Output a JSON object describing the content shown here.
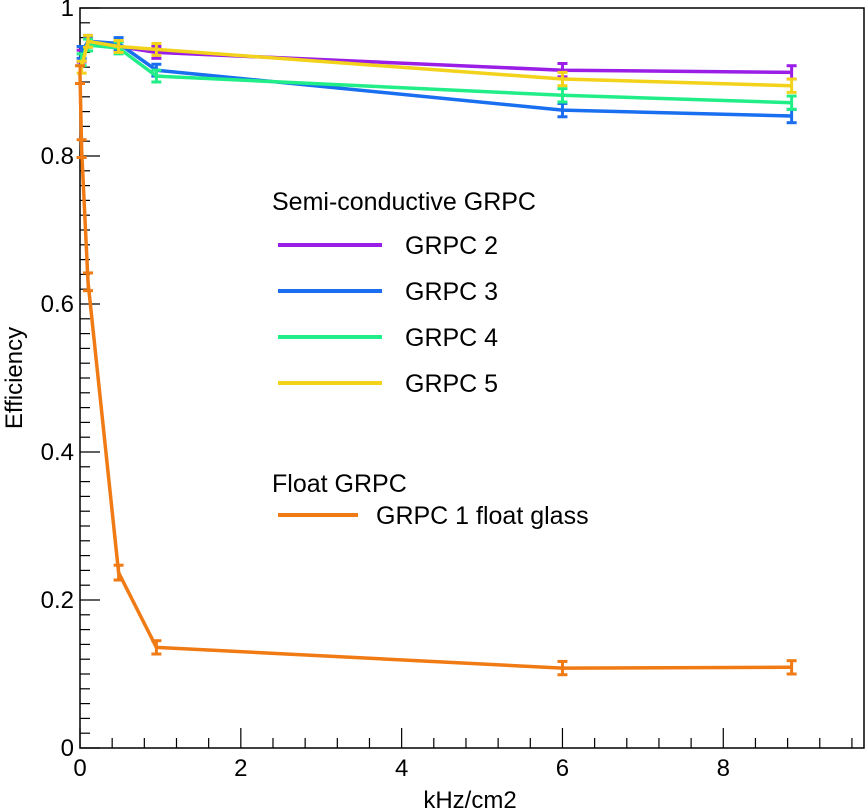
{
  "chart_data": {
    "type": "line",
    "xlabel": "kHz/cm2",
    "ylabel": "Efficiency",
    "xlim": [
      0,
      9.75
    ],
    "ylim": [
      0,
      1
    ],
    "xticks": [
      0,
      2,
      4,
      6,
      8
    ],
    "xtick_labels": [
      "0",
      "2",
      "4",
      "6",
      "8"
    ],
    "yticks": [
      0,
      0.2,
      0.4,
      0.6,
      0.8,
      1
    ],
    "ytick_labels": [
      "0",
      "0.2",
      "0.4",
      "0.6",
      "0.8",
      "1"
    ],
    "grid": false,
    "legend_groups": [
      {
        "title": "Semi-conductive GRPC",
        "placement": "center-right"
      },
      {
        "title": "Float GRPC",
        "placement": "center-right"
      }
    ],
    "series": [
      {
        "name": "GRPC 2",
        "group": 0,
        "color": "#9A1EE6",
        "x": [
          0.02,
          0.1,
          0.48,
          0.95,
          6.0,
          8.85
        ],
        "y": [
          0.935,
          0.955,
          0.948,
          0.94,
          0.916,
          0.913
        ],
        "err": [
          0.008,
          0.007,
          0.007,
          0.008,
          0.009,
          0.009
        ]
      },
      {
        "name": "GRPC 3",
        "group": 0,
        "color": "#1A6FF0",
        "x": [
          0.02,
          0.1,
          0.48,
          0.95,
          6.0,
          8.85
        ],
        "y": [
          0.94,
          0.955,
          0.952,
          0.916,
          0.862,
          0.854
        ],
        "err": [
          0.008,
          0.008,
          0.008,
          0.008,
          0.009,
          0.009
        ]
      },
      {
        "name": "GRPC 4",
        "group": 0,
        "color": "#22EE88",
        "x": [
          0.02,
          0.1,
          0.48,
          0.95,
          6.0,
          8.85
        ],
        "y": [
          0.93,
          0.95,
          0.946,
          0.908,
          0.882,
          0.872
        ],
        "err": [
          0.008,
          0.008,
          0.008,
          0.008,
          0.009,
          0.009
        ]
      },
      {
        "name": "GRPC 5",
        "group": 0,
        "color": "#F2D21A",
        "x": [
          0.02,
          0.1,
          0.48,
          0.95,
          6.0,
          8.85
        ],
        "y": [
          0.92,
          0.955,
          0.948,
          0.944,
          0.904,
          0.895
        ],
        "err": [
          0.008,
          0.008,
          0.008,
          0.008,
          0.009,
          0.009
        ]
      },
      {
        "name": "GRPC 1 float glass",
        "group": 1,
        "color": "#F07A14",
        "x": [
          0.0,
          0.02,
          0.1,
          0.48,
          0.95,
          6.0,
          8.85
        ],
        "y": [
          0.91,
          0.81,
          0.63,
          0.237,
          0.136,
          0.108,
          0.109
        ],
        "err": [
          0.012,
          0.012,
          0.012,
          0.01,
          0.009,
          0.009,
          0.009
        ]
      }
    ]
  }
}
